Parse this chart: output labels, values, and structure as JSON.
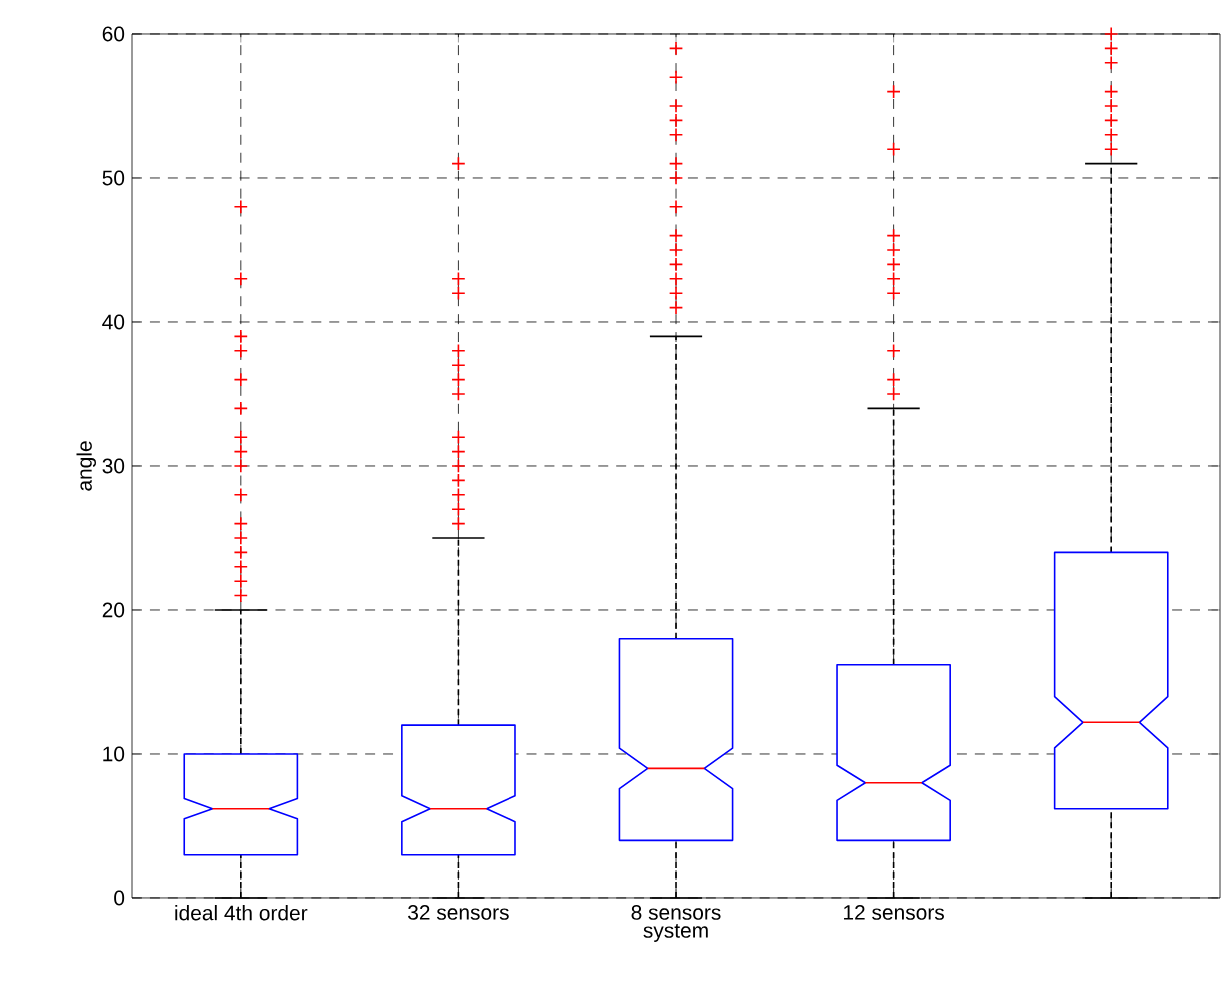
{
  "chart_data": {
    "type": "box",
    "xlabel": "system",
    "ylabel": "angle",
    "categories": [
      "ideal 4th order",
      "32 sensors",
      "8 sensors",
      "12 sensors",
      null
    ],
    "boxes": [
      {
        "low": 0,
        "q1": 3,
        "median": 6.2,
        "q3": 10,
        "high": 20,
        "outliers": [
          21,
          22,
          23,
          24,
          25,
          26,
          28,
          30,
          31,
          32,
          34,
          36,
          38,
          39,
          43,
          48
        ]
      },
      {
        "low": 0,
        "q1": 3,
        "median": 6.2,
        "q3": 12,
        "high": 25,
        "outliers": [
          26,
          27,
          28,
          29,
          30,
          31,
          32,
          35,
          36,
          37,
          38,
          42,
          43,
          51
        ]
      },
      {
        "low": 0,
        "q1": 4,
        "median": 9,
        "q3": 18,
        "high": 39,
        "outliers": [
          41,
          42,
          43,
          44,
          45,
          46,
          48,
          50,
          51,
          53,
          54,
          55,
          57,
          59
        ]
      },
      {
        "low": 0,
        "q1": 4,
        "median": 8,
        "q3": 16.2,
        "high": 34,
        "outliers": [
          35,
          36,
          38,
          42,
          43,
          44,
          45,
          46,
          52,
          56
        ]
      },
      {
        "low": 0,
        "q1": 6.2,
        "median": 12.2,
        "q3": 24,
        "high": 51,
        "outliers": [
          52,
          53,
          54,
          55,
          56,
          58,
          59,
          60
        ]
      }
    ],
    "color": "#0000ff",
    "ylim": [
      0,
      60
    ],
    "yticks": [
      0,
      10,
      20,
      30,
      40,
      50,
      60
    ],
    "grid": true,
    "marker": "cross"
  }
}
